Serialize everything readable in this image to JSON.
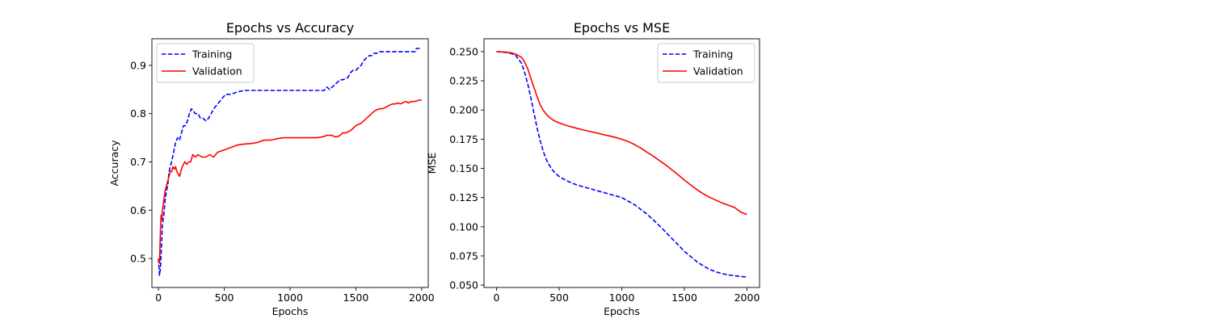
{
  "chart_data": [
    {
      "type": "line",
      "title": "Epochs vs Accuracy",
      "xlabel": "Epochs",
      "ylabel": "Accuracy",
      "xlim": [
        -50,
        2050
      ],
      "ylim": [
        0.44,
        0.955
      ],
      "xticks": [
        0,
        500,
        1000,
        1500,
        2000
      ],
      "yticks": [
        0.5,
        0.6,
        0.7,
        0.8,
        0.9
      ],
      "ytick_labels": [
        "0.5",
        "0.6",
        "0.7",
        "0.8",
        "0.9"
      ],
      "grid": false,
      "legend": "top-left",
      "series": [
        {
          "name": "Training",
          "color": "#0000ff",
          "style": "dashed",
          "x": [
            0,
            8,
            15,
            22,
            30,
            40,
            50,
            60,
            70,
            80,
            90,
            100,
            115,
            130,
            145,
            160,
            175,
            190,
            205,
            220,
            235,
            250,
            265,
            280,
            300,
            320,
            340,
            360,
            380,
            400,
            420,
            450,
            480,
            510,
            550,
            600,
            650,
            700,
            800,
            900,
            1000,
            1100,
            1200,
            1260,
            1280,
            1300,
            1320,
            1340,
            1360,
            1380,
            1400,
            1420,
            1440,
            1460,
            1480,
            1500,
            1520,
            1540,
            1560,
            1580,
            1600,
            1620,
            1640,
            1660,
            1680,
            1700,
            1720,
            1800,
            1900,
            1950,
            1960,
            1970,
            2000
          ],
          "y": [
            0.5,
            0.465,
            0.48,
            0.52,
            0.57,
            0.59,
            0.62,
            0.64,
            0.65,
            0.68,
            0.69,
            0.7,
            0.72,
            0.74,
            0.75,
            0.745,
            0.76,
            0.775,
            0.775,
            0.785,
            0.8,
            0.81,
            0.805,
            0.8,
            0.8,
            0.79,
            0.79,
            0.785,
            0.79,
            0.8,
            0.81,
            0.82,
            0.83,
            0.84,
            0.84,
            0.845,
            0.848,
            0.848,
            0.848,
            0.848,
            0.848,
            0.848,
            0.848,
            0.848,
            0.855,
            0.85,
            0.855,
            0.86,
            0.865,
            0.87,
            0.87,
            0.872,
            0.875,
            0.885,
            0.89,
            0.89,
            0.895,
            0.9,
            0.91,
            0.915,
            0.92,
            0.92,
            0.925,
            0.925,
            0.928,
            0.928,
            0.928,
            0.928,
            0.928,
            0.928,
            0.935,
            0.935,
            0.935
          ]
        },
        {
          "name": "Validation",
          "color": "#ff0000",
          "style": "solid",
          "x": [
            0,
            8,
            15,
            20,
            25,
            30,
            40,
            50,
            60,
            70,
            80,
            90,
            100,
            110,
            120,
            130,
            140,
            150,
            160,
            170,
            180,
            190,
            200,
            215,
            230,
            245,
            260,
            280,
            300,
            330,
            360,
            390,
            420,
            450,
            500,
            550,
            600,
            650,
            700,
            750,
            800,
            850,
            900,
            950,
            1000,
            1050,
            1100,
            1150,
            1200,
            1250,
            1280,
            1300,
            1320,
            1340,
            1360,
            1380,
            1400,
            1420,
            1440,
            1460,
            1480,
            1500,
            1520,
            1540,
            1560,
            1580,
            1600,
            1620,
            1640,
            1660,
            1680,
            1700,
            1720,
            1740,
            1760,
            1780,
            1800,
            1820,
            1840,
            1860,
            1880,
            1900,
            1920,
            1940,
            1960,
            1980,
            2000
          ],
          "y": [
            0.5,
            0.49,
            0.56,
            0.59,
            0.58,
            0.6,
            0.62,
            0.64,
            0.65,
            0.66,
            0.67,
            0.68,
            0.68,
            0.69,
            0.685,
            0.69,
            0.68,
            0.675,
            0.67,
            0.68,
            0.69,
            0.695,
            0.7,
            0.695,
            0.7,
            0.7,
            0.715,
            0.71,
            0.715,
            0.71,
            0.71,
            0.715,
            0.71,
            0.72,
            0.725,
            0.73,
            0.735,
            0.737,
            0.738,
            0.74,
            0.745,
            0.745,
            0.748,
            0.75,
            0.75,
            0.75,
            0.75,
            0.75,
            0.75,
            0.752,
            0.755,
            0.755,
            0.755,
            0.752,
            0.752,
            0.755,
            0.76,
            0.76,
            0.762,
            0.765,
            0.77,
            0.775,
            0.778,
            0.78,
            0.785,
            0.79,
            0.795,
            0.8,
            0.805,
            0.808,
            0.81,
            0.81,
            0.812,
            0.815,
            0.818,
            0.82,
            0.82,
            0.822,
            0.82,
            0.823,
            0.825,
            0.822,
            0.825,
            0.825,
            0.826,
            0.828,
            0.828
          ]
        }
      ]
    },
    {
      "type": "line",
      "title": "Epochs vs MSE",
      "xlabel": "Epochs",
      "ylabel": "MSE",
      "xlim": [
        -100,
        2100
      ],
      "ylim": [
        0.048,
        0.261
      ],
      "xticks": [
        0,
        500,
        1000,
        1500,
        2000
      ],
      "yticks": [
        0.05,
        0.075,
        0.1,
        0.125,
        0.15,
        0.175,
        0.2,
        0.225,
        0.25
      ],
      "ytick_labels": [
        "0.050",
        "0.075",
        "0.100",
        "0.125",
        "0.150",
        "0.175",
        "0.200",
        "0.225",
        "0.250"
      ],
      "grid": false,
      "legend": "top-right",
      "series": [
        {
          "name": "Training",
          "color": "#0000ff",
          "style": "dashed",
          "x": [
            0,
            50,
            100,
            150,
            200,
            225,
            250,
            275,
            300,
            325,
            350,
            375,
            400,
            425,
            450,
            475,
            500,
            550,
            600,
            650,
            700,
            750,
            800,
            850,
            900,
            950,
            1000,
            1050,
            1100,
            1150,
            1200,
            1250,
            1300,
            1350,
            1400,
            1450,
            1500,
            1550,
            1600,
            1650,
            1700,
            1750,
            1800,
            1850,
            1900,
            1950,
            2000
          ],
          "y": [
            0.25,
            0.2495,
            0.249,
            0.247,
            0.24,
            0.232,
            0.222,
            0.21,
            0.197,
            0.184,
            0.173,
            0.164,
            0.157,
            0.152,
            0.148,
            0.1455,
            0.143,
            0.14,
            0.1375,
            0.1355,
            0.134,
            0.1325,
            0.131,
            0.1295,
            0.128,
            0.1265,
            0.125,
            0.122,
            0.119,
            0.115,
            0.111,
            0.106,
            0.101,
            0.0955,
            0.09,
            0.0845,
            0.079,
            0.0745,
            0.07,
            0.0665,
            0.0635,
            0.0615,
            0.0598,
            0.0588,
            0.058,
            0.0574,
            0.057
          ]
        },
        {
          "name": "Validation",
          "color": "#ff0000",
          "style": "solid",
          "x": [
            0,
            50,
            100,
            150,
            200,
            225,
            250,
            275,
            300,
            325,
            350,
            375,
            400,
            425,
            450,
            475,
            500,
            550,
            600,
            650,
            700,
            750,
            800,
            850,
            900,
            950,
            1000,
            1050,
            1100,
            1150,
            1200,
            1250,
            1300,
            1350,
            1400,
            1450,
            1500,
            1550,
            1600,
            1650,
            1700,
            1750,
            1800,
            1850,
            1900,
            1950,
            2000
          ],
          "y": [
            0.25,
            0.2497,
            0.2493,
            0.248,
            0.245,
            0.241,
            0.235,
            0.227,
            0.219,
            0.211,
            0.204,
            0.1995,
            0.196,
            0.1935,
            0.1915,
            0.19,
            0.189,
            0.187,
            0.1855,
            0.184,
            0.1828,
            0.1815,
            0.1803,
            0.179,
            0.1778,
            0.1765,
            0.175,
            0.173,
            0.1705,
            0.1675,
            0.164,
            0.1605,
            0.1568,
            0.153,
            0.1488,
            0.1445,
            0.14,
            0.1358,
            0.1318,
            0.1283,
            0.1253,
            0.1228,
            0.1205,
            0.1185,
            0.1165,
            0.1125,
            0.1105
          ]
        }
      ]
    }
  ]
}
